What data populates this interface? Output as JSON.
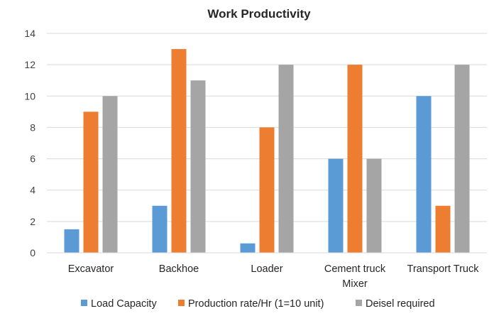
{
  "chart_data": {
    "type": "bar",
    "title": "Work Productivity",
    "xlabel": "",
    "ylabel": "",
    "categories": [
      [
        "Excavator"
      ],
      [
        "Backhoe"
      ],
      [
        "Loader"
      ],
      [
        "Cement truck",
        "Mixer"
      ],
      [
        "Transport Truck"
      ]
    ],
    "series": [
      {
        "name": "Load Capacity",
        "color": "#5B9BD5",
        "values": [
          1.5,
          3,
          0.6,
          6,
          10
        ]
      },
      {
        "name": "Production rate/Hr (1=10 unit)",
        "color": "#ED7D31",
        "values": [
          9,
          13,
          8,
          12,
          3
        ]
      },
      {
        "name": "Deisel required",
        "color": "#A5A5A5",
        "values": [
          10,
          11,
          12,
          6,
          12
        ]
      }
    ],
    "ylim": [
      0,
      14
    ],
    "yticks": [
      0,
      2,
      4,
      6,
      8,
      10,
      12,
      14
    ],
    "grid": true,
    "legend_position": "bottom"
  }
}
